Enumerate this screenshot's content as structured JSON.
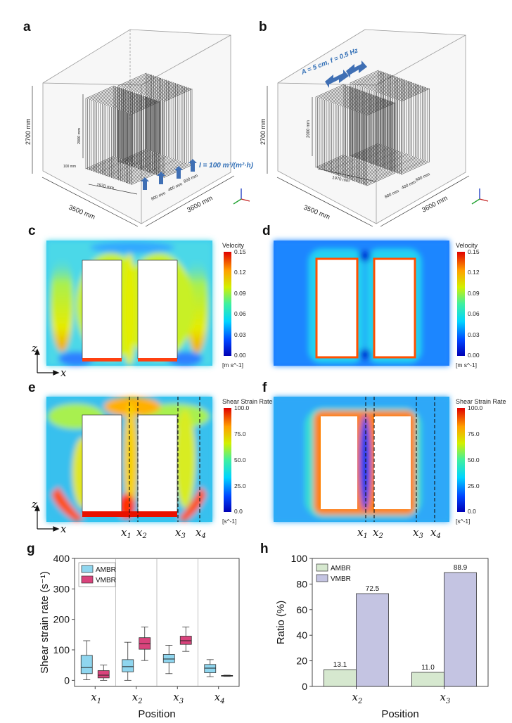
{
  "panels": {
    "a": {
      "letter": "a",
      "dim_height": "2700 mm",
      "dim_width": "3500 mm",
      "dim_depth": "3600 mm",
      "dim_board_height": "2000 mm",
      "dim_board_length": "1970 mm",
      "dim_gap": "100 mm",
      "dim_spacing": [
        "800 mm",
        "400 mm",
        "800 mm"
      ],
      "aeration_label": "I = 100 m³/(m²·h)"
    },
    "b": {
      "letter": "b",
      "dim_height": "2700 mm",
      "dim_width": "3500 mm",
      "dim_depth": "3600 mm",
      "dim_board_height": "2000 mm",
      "dim_board_length": "1970 mm",
      "dim_spacing": [
        "800 mm",
        "400 mm",
        "800 mm"
      ],
      "vibration_label": "A = 5 cm, f = 0.5 Hz"
    },
    "c": {
      "letter": "c",
      "cb_title": "Velocity",
      "cb_ticks": [
        "0.15",
        "0.12",
        "0.09",
        "0.06",
        "0.03",
        "0.00"
      ],
      "cb_unit": "[m s^-1]",
      "axis_z": "z",
      "axis_x": "x"
    },
    "d": {
      "letter": "d",
      "cb_title": "Velocity",
      "cb_ticks": [
        "0.15",
        "0.12",
        "0.09",
        "0.06",
        "0.03",
        "0.00"
      ],
      "cb_unit": "[m s^-1]"
    },
    "e": {
      "letter": "e",
      "cb_title": "Shear Strain Rate",
      "cb_ticks": [
        "100.0",
        "75.0",
        "50.0",
        "25.0",
        "0.0"
      ],
      "cb_unit": "[s^-1]",
      "axis_z": "z",
      "axis_x": "x"
    },
    "f": {
      "letter": "f",
      "cb_title": "Shear Strain Rate",
      "cb_ticks": [
        "100.0",
        "75.0",
        "50.0",
        "25.0",
        "0.0"
      ],
      "cb_unit": "[s^-1]",
      "axis_z": "z",
      "axis_x": "x"
    },
    "g": {
      "letter": "g"
    },
    "h": {
      "letter": "h"
    }
  },
  "x_positions": [
    {
      "base": "x",
      "sub": "1"
    },
    {
      "base": "x",
      "sub": "2"
    },
    {
      "base": "x",
      "sub": "3"
    },
    {
      "base": "x",
      "sub": "4"
    }
  ],
  "chart_data": [
    {
      "type": "box",
      "panel": "g",
      "xlabel": "Position",
      "ylabel": "Shear strain rate (s⁻¹)",
      "ylim": [
        -20,
        400
      ],
      "yticks": [
        0,
        100,
        200,
        300,
        400
      ],
      "categories": [
        "x1",
        "x2",
        "x3",
        "x4"
      ],
      "legend": {
        "placement": "top-left"
      },
      "series": [
        {
          "name": "AMBR",
          "color": "#8fd6ef",
          "boxes": [
            {
              "q1": 22,
              "median": 42,
              "q3": 82,
              "min": 2,
              "max": 130
            },
            {
              "q1": 28,
              "median": 45,
              "q3": 68,
              "min": 0,
              "max": 125
            },
            {
              "q1": 58,
              "median": 70,
              "q3": 85,
              "min": 22,
              "max": 115
            },
            {
              "q1": 25,
              "median": 40,
              "q3": 52,
              "min": 12,
              "max": 68
            }
          ]
        },
        {
          "name": "VMBR",
          "color": "#d9437c",
          "boxes": [
            {
              "q1": 8,
              "median": 17,
              "q3": 32,
              "min": 0,
              "max": 50
            },
            {
              "q1": 102,
              "median": 120,
              "q3": 140,
              "min": 65,
              "max": 175
            },
            {
              "q1": 118,
              "median": 130,
              "q3": 145,
              "min": 95,
              "max": 175
            },
            {
              "q1": 14,
              "median": 15,
              "q3": 16,
              "min": 13,
              "max": 17
            }
          ]
        }
      ]
    },
    {
      "type": "bar",
      "panel": "h",
      "xlabel": "Position",
      "ylabel": "Ratio (%)",
      "ylim": [
        0,
        100
      ],
      "yticks": [
        0,
        20,
        40,
        60,
        80,
        100
      ],
      "categories": [
        "x2",
        "x3"
      ],
      "legend": {
        "placement": "top-left"
      },
      "series": [
        {
          "name": "AMBR",
          "color": "#d6e8cf",
          "values": [
            13.1,
            11.0
          ],
          "labels": [
            "13.1",
            "11.0"
          ]
        },
        {
          "name": "VMBR",
          "color": "#c4c4e2",
          "values": [
            72.5,
            88.9
          ],
          "labels": [
            "72.5",
            "88.9"
          ]
        }
      ]
    }
  ]
}
